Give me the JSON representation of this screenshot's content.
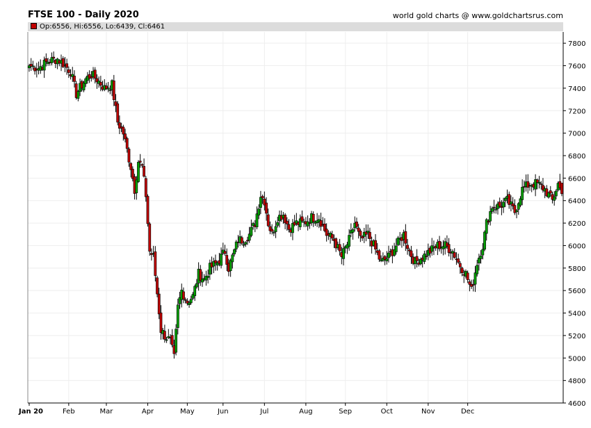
{
  "header": {
    "title": "FTSE 100 - Daily 2020",
    "source": "world gold charts @ www.goldchartsrus.com"
  },
  "legend": {
    "text": "Op:6556, Hi:6556, Lo:6439, Cl:6461",
    "swatch_color": "#c00000"
  },
  "chart_data": {
    "type": "candlestick",
    "title": "FTSE 100 - Daily 2020",
    "xlabel": "",
    "ylabel": "",
    "ylim": [
      4600,
      7900
    ],
    "y_ticks": [
      4600,
      4800,
      5000,
      5200,
      5400,
      5600,
      5800,
      6000,
      6200,
      6400,
      6600,
      6800,
      7000,
      7200,
      7400,
      7600,
      7800
    ],
    "x_ticks": [
      "Jan 20",
      "Feb",
      "Mar",
      "Apr",
      "May",
      "Jun",
      "Jul",
      "Aug",
      "Sep",
      "Oct",
      "Nov",
      "Dec"
    ],
    "grid": true,
    "up_color": "#00a000",
    "down_color": "#c00000",
    "last_bar": {
      "open": 6556,
      "high": 6556,
      "low": 6439,
      "close": 6461
    },
    "close_path": [
      [
        0,
        7600
      ],
      [
        5,
        7580
      ],
      [
        10,
        7640
      ],
      [
        15,
        7660
      ],
      [
        18,
        7620
      ],
      [
        22,
        7550
      ],
      [
        25,
        7350
      ],
      [
        30,
        7480
      ],
      [
        33,
        7520
      ],
      [
        36,
        7480
      ],
      [
        40,
        7400
      ],
      [
        44,
        7430
      ],
      [
        47,
        7100
      ],
      [
        50,
        7000
      ],
      [
        54,
        6700
      ],
      [
        56,
        6500
      ],
      [
        58,
        6750
      ],
      [
        60,
        6700
      ],
      [
        62,
        6450
      ],
      [
        64,
        5950
      ],
      [
        66,
        5900
      ],
      [
        70,
        5250
      ],
      [
        72,
        5200
      ],
      [
        75,
        5150
      ],
      [
        77,
        5000
      ],
      [
        79,
        5450
      ],
      [
        81,
        5600
      ],
      [
        84,
        5500
      ],
      [
        87,
        5550
      ],
      [
        90,
        5750
      ],
      [
        93,
        5700
      ],
      [
        96,
        5800
      ],
      [
        100,
        5850
      ],
      [
        104,
        5950
      ],
      [
        106,
        5800
      ],
      [
        108,
        5900
      ],
      [
        111,
        6050
      ],
      [
        114,
        6050
      ],
      [
        117,
        6100
      ],
      [
        120,
        6200
      ],
      [
        123,
        6450
      ],
      [
        125,
        6400
      ],
      [
        127,
        6200
      ],
      [
        129,
        6100
      ],
      [
        132,
        6250
      ],
      [
        135,
        6280
      ],
      [
        138,
        6150
      ],
      [
        142,
        6200
      ],
      [
        146,
        6200
      ],
      [
        150,
        6250
      ],
      [
        154,
        6250
      ],
      [
        158,
        6100
      ],
      [
        162,
        6050
      ],
      [
        166,
        5900
      ],
      [
        170,
        6050
      ],
      [
        173,
        6200
      ],
      [
        176,
        6050
      ],
      [
        180,
        6100
      ],
      [
        183,
        6000
      ],
      [
        187,
        5850
      ],
      [
        191,
        5900
      ],
      [
        195,
        6000
      ],
      [
        199,
        6100
      ],
      [
        202,
        5950
      ],
      [
        205,
        5850
      ],
      [
        209,
        5900
      ],
      [
        213,
        5950
      ],
      [
        217,
        6000
      ],
      [
        221,
        6000
      ],
      [
        225,
        5950
      ],
      [
        228,
        5850
      ],
      [
        232,
        5750
      ],
      [
        235,
        5600
      ],
      [
        238,
        5850
      ],
      [
        241,
        6000
      ],
      [
        243,
        6200
      ],
      [
        246,
        6350
      ],
      [
        250,
        6350
      ],
      [
        254,
        6400
      ],
      [
        258,
        6300
      ],
      [
        262,
        6500
      ],
      [
        266,
        6550
      ],
      [
        270,
        6550
      ],
      [
        274,
        6500
      ],
      [
        278,
        6400
      ],
      [
        281,
        6550
      ],
      [
        283,
        6461
      ]
    ],
    "close_path_note_x_units": "trading days since 2 Jan 2020"
  }
}
